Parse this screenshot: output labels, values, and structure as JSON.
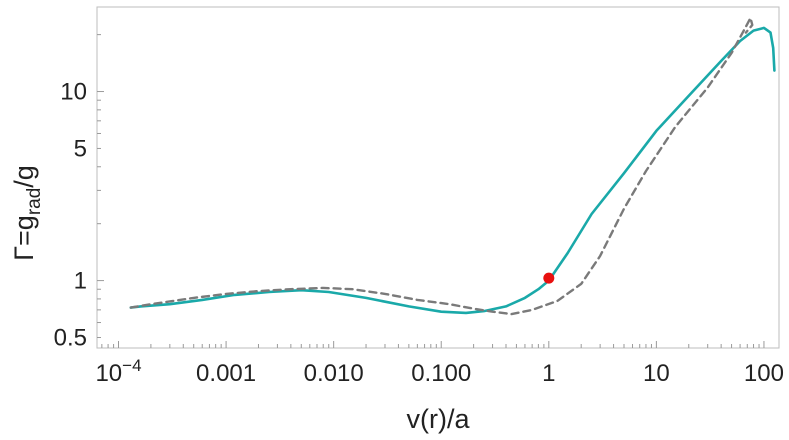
{
  "chart_data": {
    "type": "line",
    "xlabel": "v(r)/a",
    "ylabel_parts": {
      "main": "Γ=g",
      "sub": "rad",
      "tail": "/g"
    },
    "xscale": "log",
    "yscale": "log",
    "xlim": [
      6.31e-05,
      138
    ],
    "ylim": [
      0.44,
      28
    ],
    "grid": false,
    "x_ticks": [
      {
        "value": 0.0001,
        "label_base": "10",
        "label_exp": "−4"
      },
      {
        "value": 0.001,
        "label": "0.001"
      },
      {
        "value": 0.01,
        "label": "0.010"
      },
      {
        "value": 0.1,
        "label": "0.100"
      },
      {
        "value": 1,
        "label": "1"
      },
      {
        "value": 10,
        "label": "10"
      },
      {
        "value": 100,
        "label": "100"
      }
    ],
    "y_ticks": [
      {
        "value": 0.5,
        "label": "0.5"
      },
      {
        "value": 1,
        "label": "1"
      },
      {
        "value": 5,
        "label": "5"
      },
      {
        "value": 10,
        "label": "10"
      }
    ],
    "series": [
      {
        "color": "#1aa9a9",
        "style": "solid",
        "points": [
          [
            0.00013,
            0.72
          ],
          [
            0.00016,
            0.73
          ],
          [
            0.0003,
            0.75
          ],
          [
            0.0006,
            0.79
          ],
          [
            0.0012,
            0.84
          ],
          [
            0.0025,
            0.87
          ],
          [
            0.005,
            0.89
          ],
          [
            0.009,
            0.87
          ],
          [
            0.02,
            0.81
          ],
          [
            0.05,
            0.73
          ],
          [
            0.1,
            0.685
          ],
          [
            0.17,
            0.675
          ],
          [
            0.25,
            0.69
          ],
          [
            0.4,
            0.73
          ],
          [
            0.6,
            0.81
          ],
          [
            0.8,
            0.9
          ],
          [
            1.0,
            1.0
          ],
          [
            1.5,
            1.4
          ],
          [
            2.5,
            2.25
          ],
          [
            5,
            3.7
          ],
          [
            10,
            6.2
          ],
          [
            20,
            9.5
          ],
          [
            40,
            14.5
          ],
          [
            60,
            18.5
          ],
          [
            80,
            21
          ],
          [
            100,
            21.7
          ],
          [
            115,
            20.5
          ],
          [
            122,
            17
          ],
          [
            125,
            12.9
          ]
        ]
      },
      {
        "color": "#7a7a7a",
        "style": "dashed",
        "points": [
          [
            0.00013,
            0.72
          ],
          [
            0.0002,
            0.75
          ],
          [
            0.0005,
            0.81
          ],
          [
            0.001,
            0.85
          ],
          [
            0.002,
            0.88
          ],
          [
            0.004,
            0.9
          ],
          [
            0.008,
            0.915
          ],
          [
            0.015,
            0.9
          ],
          [
            0.03,
            0.85
          ],
          [
            0.06,
            0.79
          ],
          [
            0.12,
            0.75
          ],
          [
            0.2,
            0.71
          ],
          [
            0.3,
            0.685
          ],
          [
            0.45,
            0.665
          ],
          [
            0.7,
            0.7
          ],
          [
            1.2,
            0.78
          ],
          [
            2,
            0.96
          ],
          [
            3,
            1.35
          ],
          [
            5,
            2.4
          ],
          [
            8,
            3.8
          ],
          [
            15,
            6.5
          ],
          [
            30,
            10.5
          ],
          [
            50,
            16
          ],
          [
            65,
            21
          ],
          [
            75,
            24.5
          ],
          [
            78,
            22.5
          ],
          [
            68,
            20.5
          ]
        ]
      }
    ],
    "marker": {
      "x": 1,
      "y": 1.03,
      "color": "#e8100f"
    }
  }
}
